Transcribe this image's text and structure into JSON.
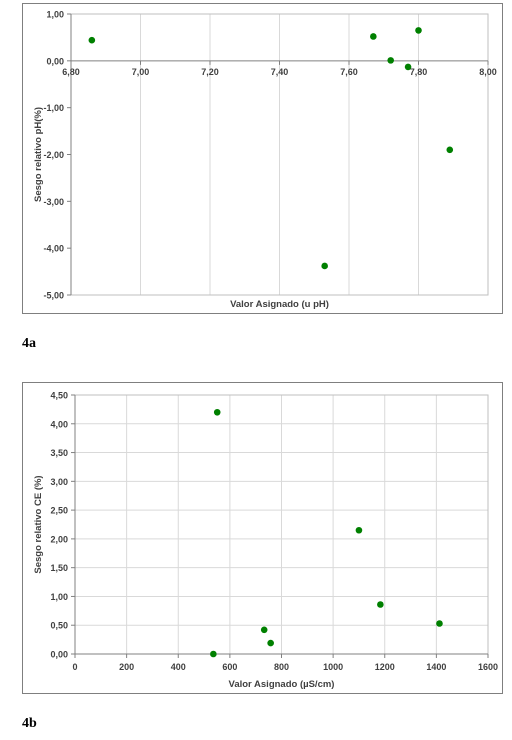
{
  "chart_data": [
    {
      "type": "scatter",
      "xlabel": "Valor Asignado (u pH)",
      "ylabel": "Sesgo relativo pH(%)",
      "xlim": [
        6.8,
        8.0
      ],
      "ylim": [
        -5.0,
        1.0
      ],
      "x_ticks": [
        "6,80",
        "7,00",
        "7,20",
        "7,40",
        "7,60",
        "7,80",
        "8,00"
      ],
      "y_ticks": [
        "1,00",
        "0,00",
        "-1,00",
        "-2,00",
        "-3,00",
        "-4,00",
        "-5,00"
      ],
      "x_tick_values": [
        6.8,
        7.0,
        7.2,
        7.4,
        7.6,
        7.8,
        8.0
      ],
      "y_tick_values": [
        1.0,
        0.0,
        -1.0,
        -2.0,
        -3.0,
        -4.0,
        -5.0
      ],
      "x_axis_at_y": 0,
      "grid": "vertical",
      "marker_color": "#008000",
      "x": [
        6.86,
        7.53,
        7.67,
        7.72,
        7.77,
        7.8,
        7.89
      ],
      "y": [
        0.44,
        -4.38,
        0.52,
        0.01,
        -0.13,
        0.65,
        -1.9
      ],
      "panel_label": "4a"
    },
    {
      "type": "scatter",
      "xlabel": "Valor Asignado (µS/cm)",
      "ylabel": "Sesgo relativo CE (%)",
      "xlim": [
        0,
        1600
      ],
      "ylim": [
        0.0,
        4.5
      ],
      "x_ticks": [
        "0",
        "200",
        "400",
        "600",
        "800",
        "1000",
        "1200",
        "1400",
        "1600"
      ],
      "y_ticks": [
        "4,50",
        "4,00",
        "3,50",
        "3,00",
        "2,50",
        "2,00",
        "1,50",
        "1,00",
        "0,50",
        "0,00"
      ],
      "x_tick_values": [
        0,
        200,
        400,
        600,
        800,
        1000,
        1200,
        1400,
        1600
      ],
      "y_tick_values": [
        4.5,
        4.0,
        3.5,
        3.0,
        2.5,
        2.0,
        1.5,
        1.0,
        0.5,
        0.0
      ],
      "grid": "both",
      "marker_color": "#008000",
      "x": [
        536,
        551,
        733,
        758,
        1100,
        1183,
        1412
      ],
      "y": [
        0.0,
        4.2,
        0.42,
        0.19,
        2.15,
        0.86,
        0.53
      ],
      "panel_label": "4b"
    }
  ]
}
